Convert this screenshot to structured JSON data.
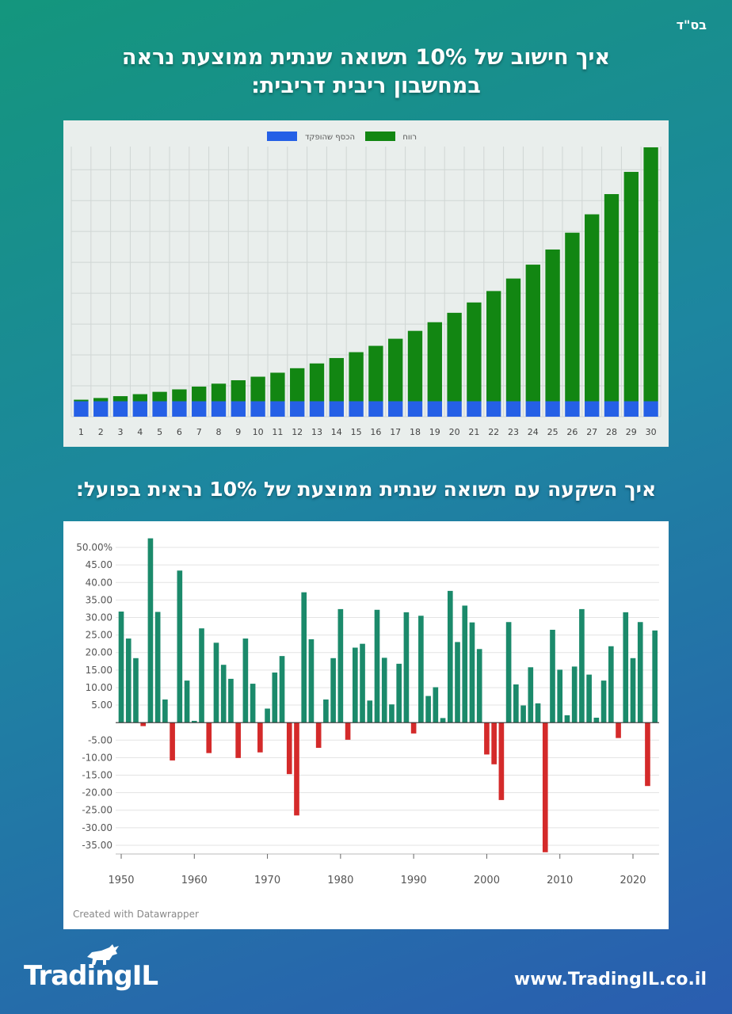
{
  "header": {
    "corner_mark": "בס\"ד",
    "title1_line1": "איך חישוב של 10% תשואה שנתית ממוצעת נראה",
    "title1_line2": "במחשבון ריבית דריבית:",
    "title2": "איך השקעה עם תשואה שנתית ממוצעת של 10% נראית בפועל:"
  },
  "footer": {
    "logo_text": "TradingIL",
    "url": "www.TradingIL.co.il"
  },
  "chart_data": [
    {
      "type": "bar",
      "stacked": true,
      "legend": [
        {
          "name": "הכסף שהופקד",
          "color": "#2560e6"
        },
        {
          "name": "רווח",
          "color": "#128612"
        }
      ],
      "legend_position": "top",
      "grid": true,
      "categories": [
        "1",
        "2",
        "3",
        "4",
        "5",
        "6",
        "7",
        "8",
        "9",
        "10",
        "11",
        "12",
        "13",
        "14",
        "15",
        "16",
        "17",
        "18",
        "19",
        "20",
        "21",
        "22",
        "23",
        "24",
        "25",
        "26",
        "27",
        "28",
        "29",
        "30"
      ],
      "series": [
        {
          "name": "הכסף שהופקד",
          "values": [
            1,
            1,
            1,
            1,
            1,
            1,
            1,
            1,
            1,
            1,
            1,
            1,
            1,
            1,
            1,
            1,
            1,
            1,
            1,
            1,
            1,
            1,
            1,
            1,
            1,
            1,
            1,
            1,
            1,
            1
          ]
        },
        {
          "name": "רווח",
          "values": [
            0.1,
            0.21,
            0.33,
            0.46,
            0.61,
            0.77,
            0.95,
            1.14,
            1.36,
            1.59,
            1.85,
            2.14,
            2.45,
            2.8,
            3.18,
            3.59,
            4.05,
            4.56,
            5.12,
            5.73,
            6.4,
            7.14,
            7.95,
            8.85,
            9.83,
            10.92,
            12.11,
            13.42,
            14.86,
            16.45
          ]
        }
      ],
      "ylim": [
        0,
        17.5
      ]
    },
    {
      "type": "bar",
      "title": "",
      "annotation": "Created with Datawrapper",
      "grid": true,
      "positive_color": "#1b8a6b",
      "negative_color": "#d42a2a",
      "ylim": [
        -37.5,
        52.5
      ],
      "yticks": [
        "50.00%",
        "45.00",
        "40.00",
        "35.00",
        "30.00",
        "25.00",
        "20.00",
        "15.00",
        "10.00",
        "5.00",
        "-5.00",
        "-10.00",
        "-15.00",
        "-20.00",
        "-25.00",
        "-30.00",
        "-35.00"
      ],
      "ytick_values": [
        50,
        45,
        40,
        35,
        30,
        25,
        20,
        15,
        10,
        5,
        -5,
        -10,
        -15,
        -20,
        -25,
        -30,
        -35
      ],
      "xticks": [
        "1950",
        "1960",
        "1970",
        "1980",
        "1990",
        "2000",
        "2010",
        "2020"
      ],
      "x": [
        1950,
        1951,
        1952,
        1953,
        1954,
        1955,
        1956,
        1957,
        1958,
        1959,
        1960,
        1961,
        1962,
        1963,
        1964,
        1965,
        1966,
        1967,
        1968,
        1969,
        1970,
        1971,
        1972,
        1973,
        1974,
        1975,
        1976,
        1977,
        1978,
        1979,
        1980,
        1981,
        1982,
        1983,
        1984,
        1985,
        1986,
        1987,
        1988,
        1989,
        1990,
        1991,
        1992,
        1993,
        1994,
        1995,
        1996,
        1997,
        1998,
        1999,
        2000,
        2001,
        2002,
        2003,
        2004,
        2005,
        2006,
        2007,
        2008,
        2009,
        2010,
        2011,
        2012,
        2013,
        2014,
        2015,
        2016,
        2017,
        2018,
        2019,
        2020,
        2021,
        2022,
        2023
      ],
      "values": [
        31.7,
        24.0,
        18.4,
        -1.0,
        52.6,
        31.6,
        6.6,
        -10.8,
        43.4,
        12.0,
        0.5,
        26.9,
        -8.7,
        22.8,
        16.5,
        12.5,
        -10.1,
        24.0,
        11.1,
        -8.5,
        4.0,
        14.3,
        19.0,
        -14.7,
        -26.5,
        37.2,
        23.8,
        -7.2,
        6.6,
        18.4,
        32.4,
        -4.9,
        21.4,
        22.5,
        6.3,
        32.2,
        18.5,
        5.2,
        16.8,
        31.5,
        -3.1,
        30.5,
        7.6,
        10.1,
        1.3,
        37.6,
        23.0,
        33.4,
        28.6,
        21.0,
        -9.1,
        -11.9,
        -22.1,
        28.7,
        10.9,
        4.9,
        15.8,
        5.5,
        -37.0,
        26.5,
        15.1,
        2.1,
        16.0,
        32.4,
        13.7,
        1.4,
        12.0,
        21.8,
        -4.4,
        31.5,
        18.4,
        28.7,
        -18.1,
        26.3
      ]
    }
  ]
}
